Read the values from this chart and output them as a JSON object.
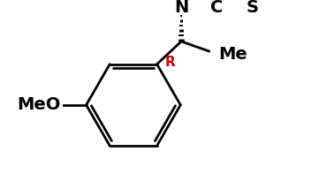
{
  "bg_color": "#ffffff",
  "line_color": "#000000",
  "label_color_black": "#000000",
  "label_color_red": "#cc0000",
  "line_width": 2.0,
  "figsize": [
    3.61,
    1.97
  ],
  "dpi": 100,
  "font_size_labels": 14,
  "font_size_r": 11,
  "meo_label": "MeO",
  "n_label": "N",
  "c_label": "C",
  "s_label": "S",
  "r_label": "R",
  "me_label": "Me"
}
